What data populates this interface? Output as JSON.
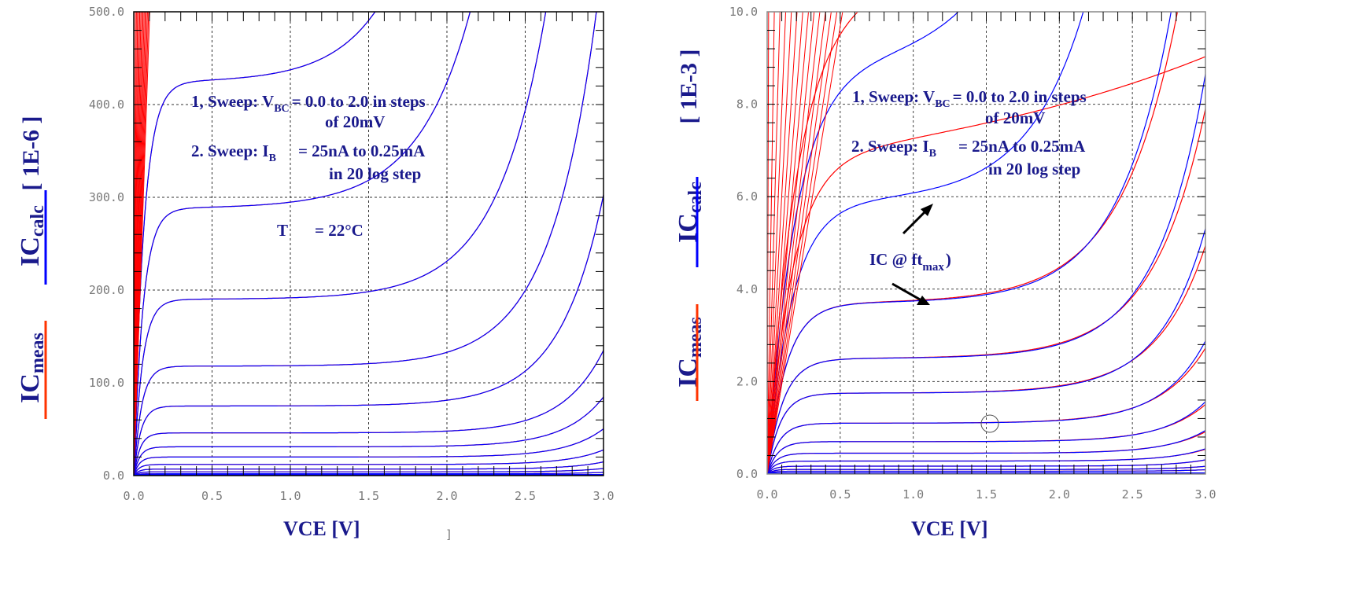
{
  "colors": {
    "calc": "#0000ff",
    "meas": "#ff0000",
    "text": "#1a1a8c",
    "grid": "#000000"
  },
  "chart_data": [
    {
      "type": "line",
      "xlabel": "VCE   [V]",
      "stray_mark": "]",
      "ylabel_calc": "IC",
      "ylabel_calc_sub": "calc",
      "ylabel_meas": "IC",
      "ylabel_meas_sub": "meas",
      "yscale": "[ 1E-6 ]",
      "xlim": [
        0,
        3.0
      ],
      "ylim": [
        0,
        500
      ],
      "xticks": [
        "0.0",
        "0.5",
        "1.0",
        "1.5",
        "2.0",
        "2.5",
        "3.0"
      ],
      "yticks": [
        "0.0",
        "100.0",
        "200.0",
        "300.0",
        "400.0",
        "500.0"
      ],
      "grid": true,
      "annotations": {
        "sweep1_a": "1, Sweep:  V",
        "sweep1_sub": "BC",
        "sweep1_b": "= 0.0 to 2.0 in steps",
        "sweep1_c": "of 20mV",
        "sweep2_a": "2. Sweep:  I",
        "sweep2_sub": "B",
        "sweep2_b": "= 25nA to 0.25mA",
        "sweep2_c": "in 20  log step",
        "temp_a": "T",
        "temp_b": "= 22°C"
      },
      "curves": [
        {
          "sat": 424,
          "vk": 1.75,
          "k": 3.2,
          "t": 0.065
        },
        {
          "sat": 288,
          "vk": 1.9,
          "k": 3.0,
          "t": 0.06
        },
        {
          "sat": 190,
          "vk": 2.15,
          "k": 3.2,
          "t": 0.055
        },
        {
          "sat": 118,
          "vk": 2.3,
          "k": 3.4,
          "t": 0.05
        },
        {
          "sat": 75,
          "vk": 2.4,
          "k": 3.6,
          "t": 0.045
        },
        {
          "sat": 46,
          "vk": 2.55,
          "k": 3.8,
          "t": 0.04
        },
        {
          "sat": 31,
          "vk": 2.6,
          "k": 4.0,
          "t": 0.038
        },
        {
          "sat": 20,
          "vk": 2.65,
          "k": 4.2,
          "t": 0.035
        },
        {
          "sat": 12,
          "vk": 2.7,
          "k": 4.4,
          "t": 0.032
        },
        {
          "sat": 7,
          "vk": 2.75,
          "k": 4.6,
          "t": 0.03
        },
        {
          "sat": 4,
          "vk": 2.8,
          "k": 4.8,
          "t": 0.028
        },
        {
          "sat": 2,
          "vk": 2.85,
          "k": 5.0,
          "t": 0.026
        }
      ]
    },
    {
      "type": "line",
      "xlabel": "VCE   [V]",
      "ylabel_calc": "IC",
      "ylabel_calc_sub": "calc",
      "ylabel_meas": "IC",
      "ylabel_meas_sub": "meas",
      "yscale": "[ 1E-3 ]",
      "xlim": [
        0,
        3.0
      ],
      "ylim": [
        0,
        10.0
      ],
      "xticks": [
        "0.0",
        "0.5",
        "1.0",
        "1.5",
        "2.0",
        "2.5",
        "3.0"
      ],
      "yticks": [
        "0.0",
        "2.0",
        "4.0",
        "6.0",
        "8.0",
        "10.0"
      ],
      "grid": true,
      "annotations": {
        "sweep1_a": "1, Sweep:  V",
        "sweep1_sub": "BC",
        "sweep1_b": "= 0.0 to 2.0 in steps",
        "sweep1_c": "of 20mV",
        "sweep2_a": "2. Sweep:  I",
        "sweep2_sub": "B",
        "sweep2_b": "= 25nA to 0.25mA",
        "sweep2_c": "in 20  log step",
        "ic_a": "IC @ ft",
        "ic_sub": "max",
        "ic_b": ")"
      },
      "curves": [
        {
          "sat": 8.85,
          "vk": 1.7,
          "k": 2.5,
          "t": 0.2,
          "msat": 8.85,
          "mk": 0.6
        },
        {
          "sat": 5.9,
          "vk": 1.9,
          "k": 2.6,
          "t": 0.17,
          "msat": 5.85,
          "mk": 0.4
        },
        {
          "sat": 3.7,
          "vk": 2.2,
          "k": 2.8,
          "t": 0.13,
          "msat": 3.7,
          "mk": 2.6
        },
        {
          "sat": 2.5,
          "vk": 2.35,
          "k": 3.0,
          "t": 0.11,
          "msat": 2.5,
          "mk": 2.8
        },
        {
          "sat": 1.75,
          "vk": 2.45,
          "k": 3.2,
          "t": 0.09,
          "msat": 1.75,
          "mk": 3.0
        },
        {
          "sat": 1.1,
          "vk": 2.55,
          "k": 3.4,
          "t": 0.08,
          "msat": 1.1,
          "mk": 3.2
        },
        {
          "sat": 0.7,
          "vk": 2.65,
          "k": 3.6,
          "t": 0.07,
          "msat": 0.7,
          "mk": 3.4
        },
        {
          "sat": 0.45,
          "vk": 2.7,
          "k": 3.8,
          "t": 0.06,
          "msat": 0.45,
          "mk": 3.6
        },
        {
          "sat": 0.28,
          "vk": 2.75,
          "k": 4.0,
          "t": 0.05,
          "msat": 0.28,
          "mk": 3.8
        },
        {
          "sat": 0.17,
          "vk": 2.8,
          "k": 4.2,
          "t": 0.045,
          "msat": 0.17,
          "mk": 4.0
        },
        {
          "sat": 0.1,
          "vk": 2.85,
          "k": 4.4,
          "t": 0.04,
          "msat": 0.1,
          "mk": 4.2
        },
        {
          "sat": 0.06,
          "vk": 2.9,
          "k": 4.6,
          "t": 0.035,
          "msat": 0.06,
          "mk": 4.4
        }
      ]
    }
  ]
}
